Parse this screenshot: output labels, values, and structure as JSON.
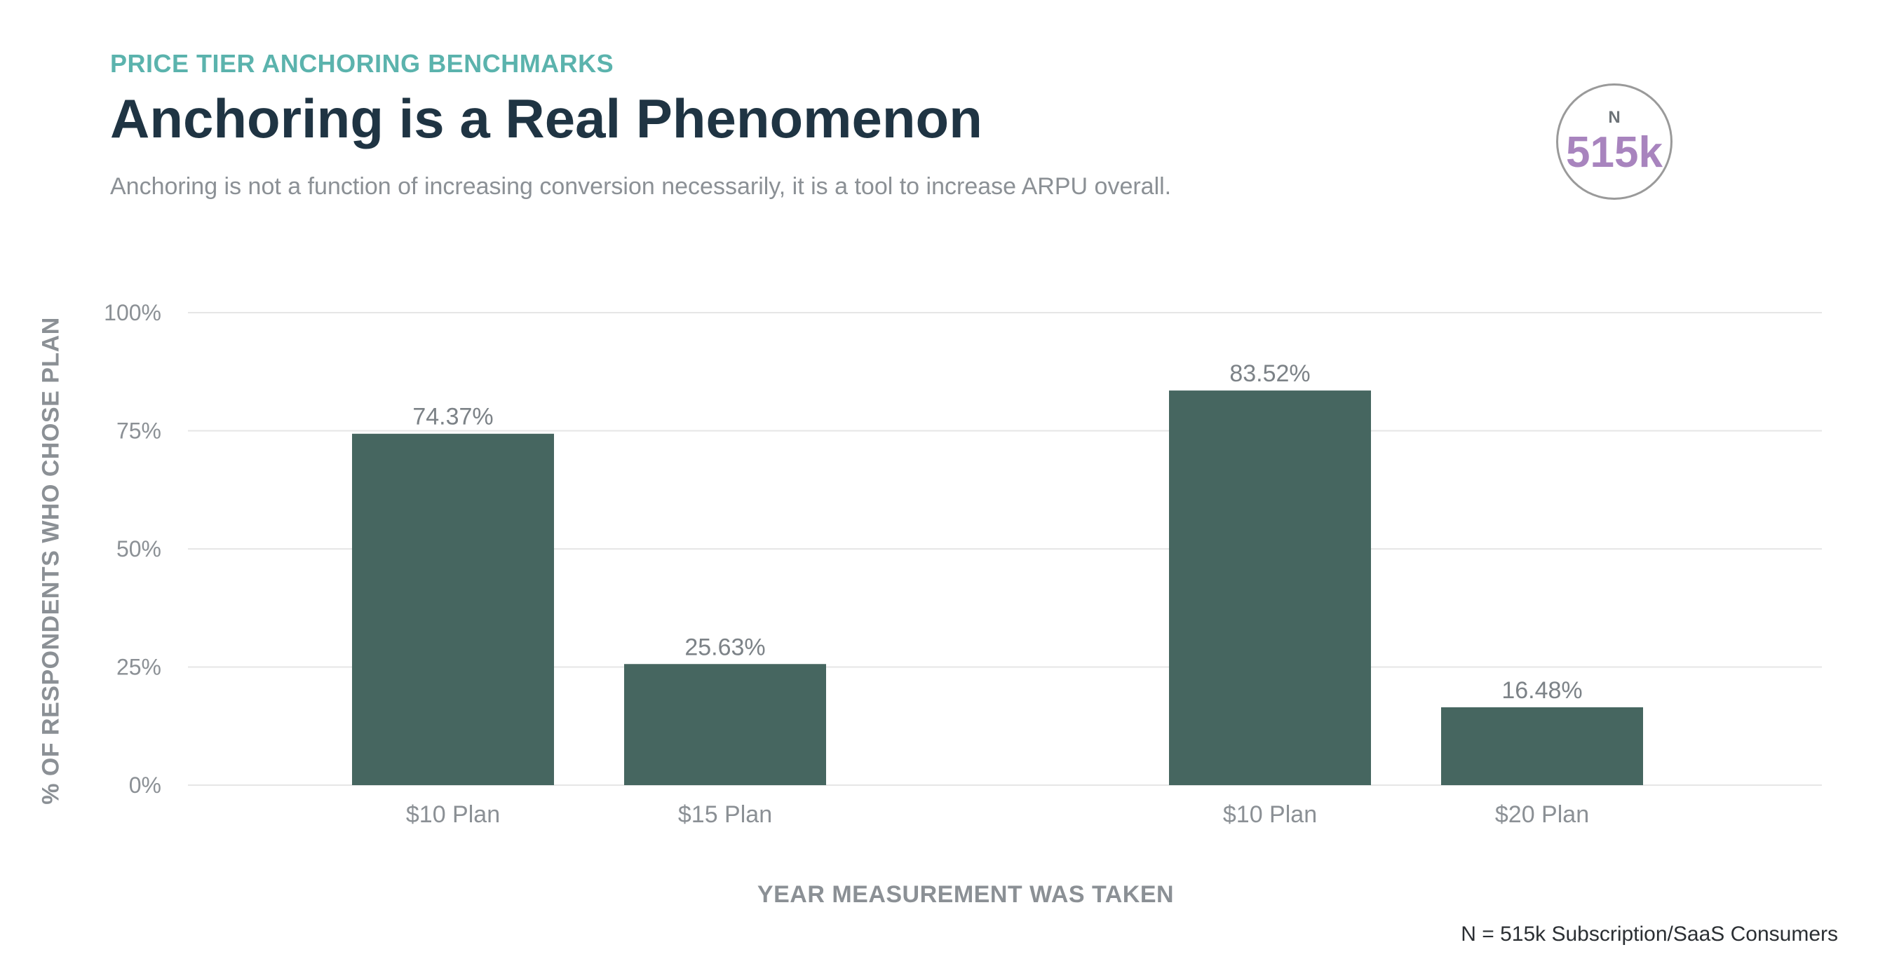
{
  "header": {
    "eyebrow": "PRICE TIER ANCHORING BENCHMARKS",
    "title": "Anchoring is a Real Phenomenon",
    "subtitle": "Anchoring is not a function of increasing conversion necessarily, it is a tool to increase ARPU overall."
  },
  "badge": {
    "label": "N",
    "value": "515k"
  },
  "footnote": "N = 515k Subscription/SaaS Consumers",
  "colors": {
    "bar": "#466660",
    "eyebrow": "#5bb3ad",
    "title": "#1f3443",
    "badge_value": "#a884be",
    "grid": "#e6e6e6"
  },
  "chart_data": {
    "type": "bar",
    "categories": [
      "$10 Plan",
      "$15 Plan",
      "$10 Plan",
      "$20 Plan"
    ],
    "groups": [
      {
        "categories": [
          "$10 Plan",
          "$15 Plan"
        ],
        "values": [
          74.37,
          25.63
        ]
      },
      {
        "categories": [
          "$10 Plan",
          "$20 Plan"
        ],
        "values": [
          83.52,
          16.48
        ]
      }
    ],
    "values": [
      74.37,
      25.63,
      83.52,
      16.48
    ],
    "data_labels": [
      "74.37%",
      "25.63%",
      "83.52%",
      "16.48%"
    ],
    "xlabel": "YEAR MEASUREMENT WAS TAKEN",
    "ylabel": "% OF RESPONDENTS WHO CHOSE PLAN",
    "ylim": [
      0,
      100
    ],
    "yticks": [
      0,
      25,
      50,
      75,
      100
    ],
    "ytick_labels": [
      "0%",
      "25%",
      "50%",
      "75%",
      "100%"
    ],
    "grid": true,
    "legend": "none"
  }
}
